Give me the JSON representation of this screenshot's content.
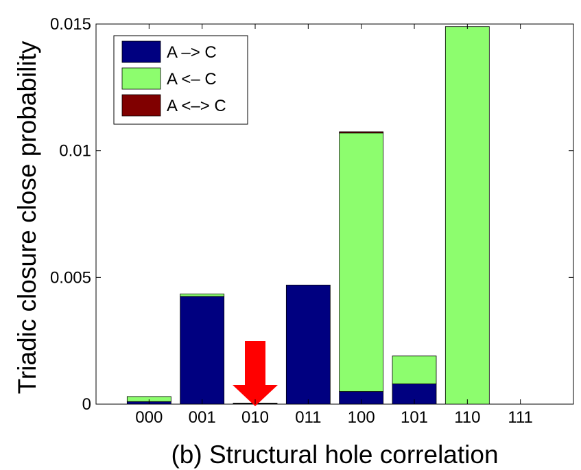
{
  "chart_data": {
    "type": "bar",
    "stacked": true,
    "categories": [
      "000",
      "001",
      "010",
      "011",
      "100",
      "101",
      "110",
      "111"
    ],
    "series": [
      {
        "name": "A –> C",
        "color": "#000080",
        "values": [
          0.0001,
          0.00425,
          2e-05,
          0.0047,
          0.0005,
          0.0008,
          0.0,
          0.0
        ]
      },
      {
        "name": "A <– C",
        "color": "#8dfd6e",
        "values": [
          0.0002,
          0.0001,
          2e-05,
          0.0,
          0.0102,
          0.0011,
          0.0149,
          0.0
        ]
      },
      {
        "name": "A <–> C",
        "color": "#800000",
        "values": [
          0.0,
          0.0,
          0.0,
          0.0,
          5e-05,
          0.0,
          0.0,
          0.0
        ]
      }
    ],
    "ylim": [
      0,
      0.015
    ],
    "yticks": [
      "0",
      "0.005",
      "0.01",
      "0.015"
    ],
    "ylabel": "Triadic closure close probability",
    "xlabel": "(b) Structural hole correlation",
    "legend_position": "top-left",
    "annotation": {
      "type": "arrow",
      "target_category": "010",
      "color": "#ff0000"
    }
  }
}
